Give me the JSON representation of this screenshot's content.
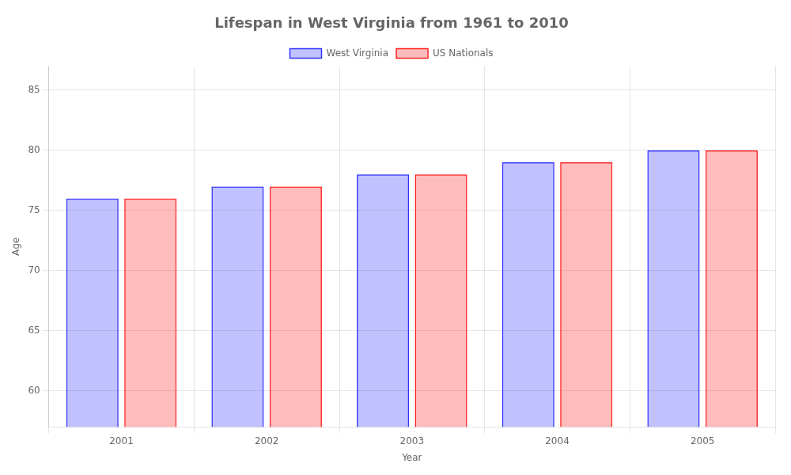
{
  "chart_data": {
    "type": "bar",
    "title": "Lifespan in West Virginia from 1961 to 2010",
    "xlabel": "Year",
    "ylabel": "Age",
    "categories": [
      "2001",
      "2002",
      "2003",
      "2004",
      "2005"
    ],
    "series": [
      {
        "name": "West Virginia",
        "color": "#3333ff",
        "values": [
          76,
          77,
          78,
          79,
          80
        ]
      },
      {
        "name": "US Nationals",
        "color": "#ff2222",
        "values": [
          76,
          77,
          78,
          79,
          80
        ]
      }
    ],
    "ylim": [
      57,
      87
    ],
    "yticks": [
      60,
      65,
      70,
      75,
      80,
      85
    ],
    "grid": true,
    "legend": "top"
  }
}
